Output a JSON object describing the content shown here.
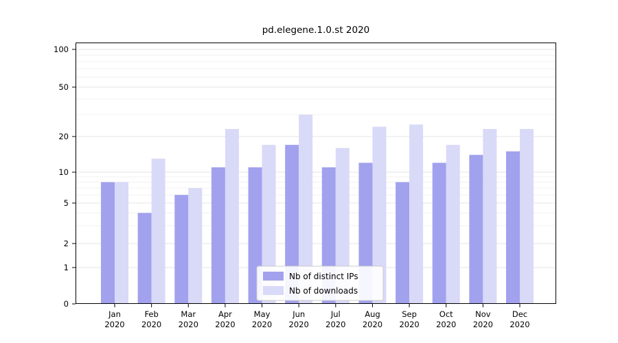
{
  "chart_data": {
    "type": "bar",
    "title": "pd.elegene.1.0.st 2020",
    "year": "2020",
    "categories": [
      "Jan",
      "Feb",
      "Mar",
      "Apr",
      "May",
      "Jun",
      "Jul",
      "Aug",
      "Sep",
      "Oct",
      "Nov",
      "Dec"
    ],
    "series": [
      {
        "name": "Nb of distinct IPs",
        "color": "#a1a1ee",
        "values": [
          8,
          4,
          6,
          11,
          11,
          17,
          11,
          12,
          8,
          12,
          14,
          15
        ]
      },
      {
        "name": "Nb of downloads",
        "color": "#d9d9f8",
        "values": [
          8,
          13,
          7,
          23,
          17,
          30,
          16,
          24,
          25,
          17,
          23,
          23
        ]
      }
    ],
    "yscale": "symlog",
    "y_ticks": [
      0,
      1,
      2,
      5,
      10,
      20,
      50,
      100
    ],
    "y_minor_ticks": [
      3,
      4,
      6,
      7,
      8,
      9,
      30,
      40,
      60,
      70,
      80,
      90
    ],
    "ylim": [
      0,
      100
    ],
    "grid": "on",
    "xlabel": "",
    "ylabel": "",
    "legend": {
      "position": "lower center",
      "entries": [
        "Nb of distinct IPs",
        "Nb of downloads"
      ]
    }
  }
}
